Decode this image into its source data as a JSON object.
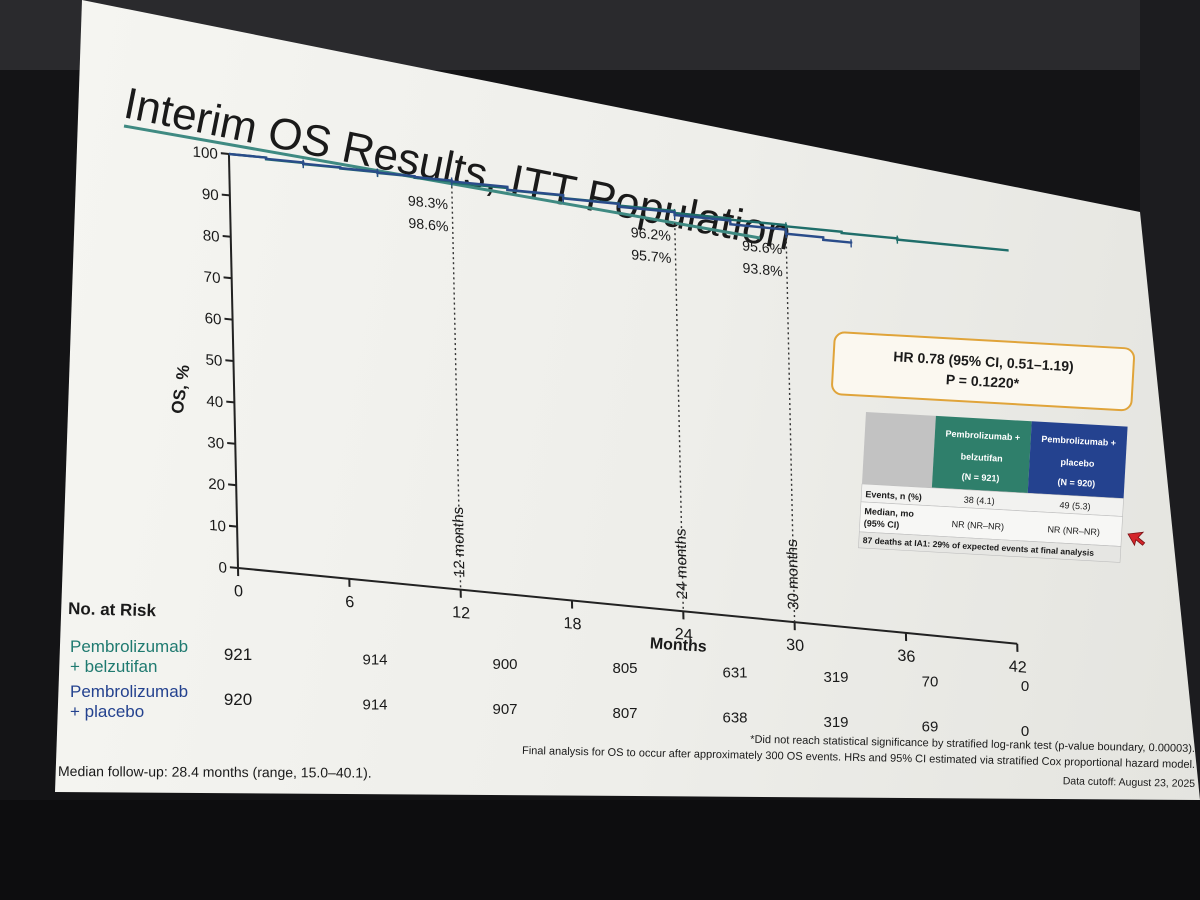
{
  "slide_title": "Interim OS Results, ITT Population",
  "chart_data": {
    "type": "line",
    "ylabel": "OS, %",
    "xlabel": "Months",
    "ylim": [
      0,
      100
    ],
    "xlim": [
      0,
      42
    ],
    "yticks": [
      "0",
      "10",
      "20",
      "30",
      "40",
      "50",
      "60",
      "70",
      "80",
      "90",
      "100"
    ],
    "xticks": [
      "0",
      "6",
      "12",
      "18",
      "24",
      "30",
      "36",
      "42"
    ],
    "series": [
      {
        "name": "Pembrolizumab + belzutifan",
        "color": "#1f6e6a",
        "points": [
          [
            0,
            100
          ],
          [
            2,
            99.6
          ],
          [
            4,
            99.3
          ],
          [
            6,
            99.1
          ],
          [
            8,
            98.9
          ],
          [
            10,
            98.6
          ],
          [
            12,
            98.3
          ],
          [
            15,
            97.8
          ],
          [
            18,
            97.2
          ],
          [
            21,
            96.7
          ],
          [
            24,
            96.2
          ],
          [
            27,
            95.9
          ],
          [
            30,
            95.6
          ],
          [
            33,
            95.3
          ],
          [
            36,
            95.0
          ],
          [
            42,
            95.0
          ]
        ]
      },
      {
        "name": "Pembrolizumab + placebo",
        "color": "#2a4c8a",
        "points": [
          [
            0,
            100
          ],
          [
            2,
            99.7
          ],
          [
            4,
            99.4
          ],
          [
            6,
            99.2
          ],
          [
            8,
            99.0
          ],
          [
            10,
            98.8
          ],
          [
            12,
            98.6
          ],
          [
            15,
            97.9
          ],
          [
            18,
            97.1
          ],
          [
            21,
            96.4
          ],
          [
            24,
            95.7
          ],
          [
            27,
            94.8
          ],
          [
            30,
            93.8
          ],
          [
            32,
            93.2
          ],
          [
            33.5,
            93.0
          ]
        ]
      }
    ],
    "landmarks": [
      {
        "month": 12,
        "label": "12 months",
        "upper": "98.3%",
        "lower": "98.6%"
      },
      {
        "month": 24,
        "label": "24 months",
        "upper": "96.2%",
        "lower": "95.7%"
      },
      {
        "month": 30,
        "label": "30 months",
        "upper": "95.6%",
        "lower": "93.8%"
      }
    ]
  },
  "hr_box": {
    "line1": "HR 0.78 (95% CI, 0.51–1.19)",
    "line2": "P = 0.1220*"
  },
  "stats_table": {
    "col1_header": [
      "Pembrolizumab +",
      "belzutifan",
      "(N = 921)"
    ],
    "col2_header": [
      "Pembrolizumab +",
      "placebo",
      "(N = 920)"
    ],
    "events_label": "Events, n (%)",
    "events_values": [
      "38 (4.1)",
      "49 (5.3)"
    ],
    "median_label_1": "Median, mo",
    "median_label_2": "(95% CI)",
    "median_values": [
      "NR (NR–NR)",
      "NR (NR–NR)"
    ],
    "footer": "87 deaths at IA1: 29% of expected events at final analysis",
    "col1_color": "#2f7f6b",
    "col2_color": "#24428f"
  },
  "risk_table": {
    "title": "No. at Risk",
    "rows": [
      {
        "label1": "Pembrolizumab",
        "label2": "+ belzutifan",
        "values": [
          "921",
          "914",
          "900",
          "805",
          "631",
          "319",
          "70",
          "0"
        ]
      },
      {
        "label1": "Pembrolizumab",
        "label2": "+ placebo",
        "values": [
          "920",
          "914",
          "907",
          "807",
          "638",
          "319",
          "69",
          "0"
        ]
      }
    ]
  },
  "footnotes": {
    "followup": "Median follow-up: 28.4 months (range, 15.0–40.1).",
    "note1": "*Did not reach statistical significance by stratified log-rank test (p-value boundary, 0.00003).",
    "note2": "Final analysis for OS to occur after approximately 300 OS events. HRs and 95% CI estimated via stratified Cox proportional hazard model.",
    "cutoff": "Data cutoff: August 23, 2025"
  }
}
